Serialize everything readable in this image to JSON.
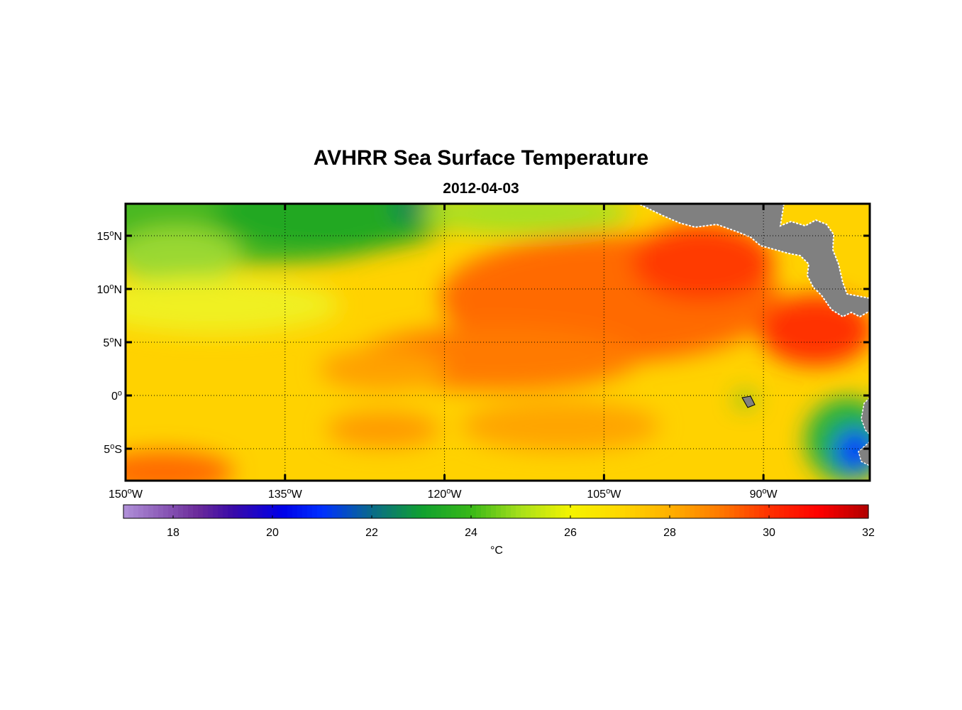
{
  "title": "AVHRR Sea Surface Temperature",
  "date": "2012-04-03",
  "map": {
    "lon_range": [
      -150,
      -80
    ],
    "lat_range": [
      -8,
      18
    ],
    "lon_ticks": [
      {
        "value": -150,
        "num": "150",
        "deg": "o",
        "hem": "W"
      },
      {
        "value": -135,
        "num": "135",
        "deg": "o",
        "hem": "W"
      },
      {
        "value": -120,
        "num": "120",
        "deg": "o",
        "hem": "W"
      },
      {
        "value": -105,
        "num": "105",
        "deg": "o",
        "hem": "W"
      },
      {
        "value": -90,
        "num": "90",
        "deg": "o",
        "hem": "W"
      }
    ],
    "lat_ticks": [
      {
        "value": 15,
        "num": "15",
        "deg": "o",
        "hem": "N"
      },
      {
        "value": 10,
        "num": "10",
        "deg": "o",
        "hem": "N"
      },
      {
        "value": 5,
        "num": "5",
        "deg": "o",
        "hem": "N"
      },
      {
        "value": 0,
        "num": "0",
        "deg": "o",
        "hem": ""
      },
      {
        "value": -5,
        "num": "5",
        "deg": "o",
        "hem": "S"
      }
    ],
    "land_color": "#808080",
    "grid": "dotted"
  },
  "colorbar": {
    "range": [
      17,
      32
    ],
    "ticks": [
      "18",
      "20",
      "22",
      "24",
      "26",
      "28",
      "30",
      "32"
    ],
    "unit": "°C",
    "stops": [
      [
        17,
        "#b090d8"
      ],
      [
        18.5,
        "#6a2a9a"
      ],
      [
        19.2,
        "#3a0aa8"
      ],
      [
        20.2,
        "#0000e8"
      ],
      [
        21,
        "#0030ff"
      ],
      [
        22,
        "#0a6a8a"
      ],
      [
        23,
        "#10a030"
      ],
      [
        24,
        "#38b818"
      ],
      [
        25,
        "#a8e01a"
      ],
      [
        26,
        "#f4f400"
      ],
      [
        27,
        "#ffd800"
      ],
      [
        28,
        "#ffb000"
      ],
      [
        29,
        "#ff7a00"
      ],
      [
        30,
        "#ff3000"
      ],
      [
        31,
        "#ff0000"
      ],
      [
        32,
        "#b00000"
      ]
    ]
  }
}
